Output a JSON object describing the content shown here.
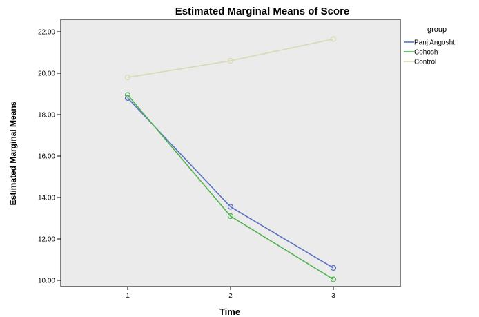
{
  "chart_data": {
    "type": "line",
    "title": "Estimated Marginal Means of Score",
    "xlabel": "Time",
    "ylabel": "Estimated Marginal Means",
    "categories": [
      "1",
      "2",
      "3"
    ],
    "ylim": [
      9.7,
      22.6
    ],
    "yticks": [
      "10.00",
      "12.00",
      "14.00",
      "16.00",
      "18.00",
      "20.00",
      "22.00"
    ],
    "ytick_values": [
      10,
      12,
      14,
      16,
      18,
      20,
      22
    ],
    "grid": false,
    "legend": {
      "title": "group",
      "position": "right"
    },
    "plot_background": "#ebebeb",
    "series": [
      {
        "name": "Panj Angosht",
        "color": "#5b6fc4",
        "values": [
          18.8,
          13.55,
          10.6
        ]
      },
      {
        "name": "Cohosh",
        "color": "#4fb24f",
        "values": [
          18.95,
          13.1,
          10.05
        ]
      },
      {
        "name": "Control",
        "color": "#d9d7b4",
        "values": [
          19.8,
          20.6,
          21.65
        ]
      }
    ]
  }
}
